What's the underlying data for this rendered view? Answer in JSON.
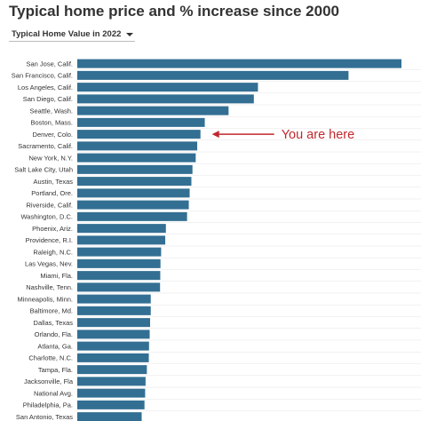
{
  "header": {
    "title": "Typical home price and % increase since 2000"
  },
  "dropdown": {
    "selected": "Typical Home Value in 2022"
  },
  "colors": {
    "bar": "#336f93",
    "annotation": "#c0282d",
    "grid": "#e6e6e6"
  },
  "chart_data": {
    "type": "bar",
    "orientation": "horizontal",
    "title": "Typical home price and % increase since 2000",
    "grid": true,
    "categories": [
      "San Jose, Calif.",
      "San Francisco, Calif.",
      "Los Angeles, Calif.",
      "San Diego, Calif.",
      "Seattle, Wash.",
      "Boston, Mass.",
      "Denver, Colo.",
      "Sacramento, Calif.",
      "New York, N.Y.",
      "Salt Lake City, Utah",
      "Austin, Texas",
      "Portland, Ore.",
      "Riverside, Calif.",
      "Washington, D.C.",
      "Phoenix, Ariz.",
      "Providence, R.I.",
      "Raleigh, N.C.",
      "Las Vegas, Nev.",
      "Miami, Fla.",
      "Nashville, Tenn.",
      "Minneapolis, Minn.",
      "Baltimore, Md.",
      "Dallas, Texas",
      "Orlando, Fla.",
      "Atlanta, Ga.",
      "Charlotte, N.C.",
      "Tampa, Fla.",
      "Jacksonville, Fla",
      "National Avg.",
      "Philadelphia, Pa.",
      "San Antonio, Texas"
    ],
    "values": [
      1500,
      1255,
      836,
      817,
      700,
      590,
      570,
      555,
      548,
      533,
      528,
      520,
      516,
      508,
      410,
      407,
      388,
      385,
      384,
      383,
      340,
      340,
      337,
      335,
      332,
      331,
      322,
      316,
      314,
      311,
      298
    ],
    "xlim": [
      0,
      1500
    ],
    "annotation": {
      "text": "You are here",
      "target": "Denver, Colo."
    }
  }
}
